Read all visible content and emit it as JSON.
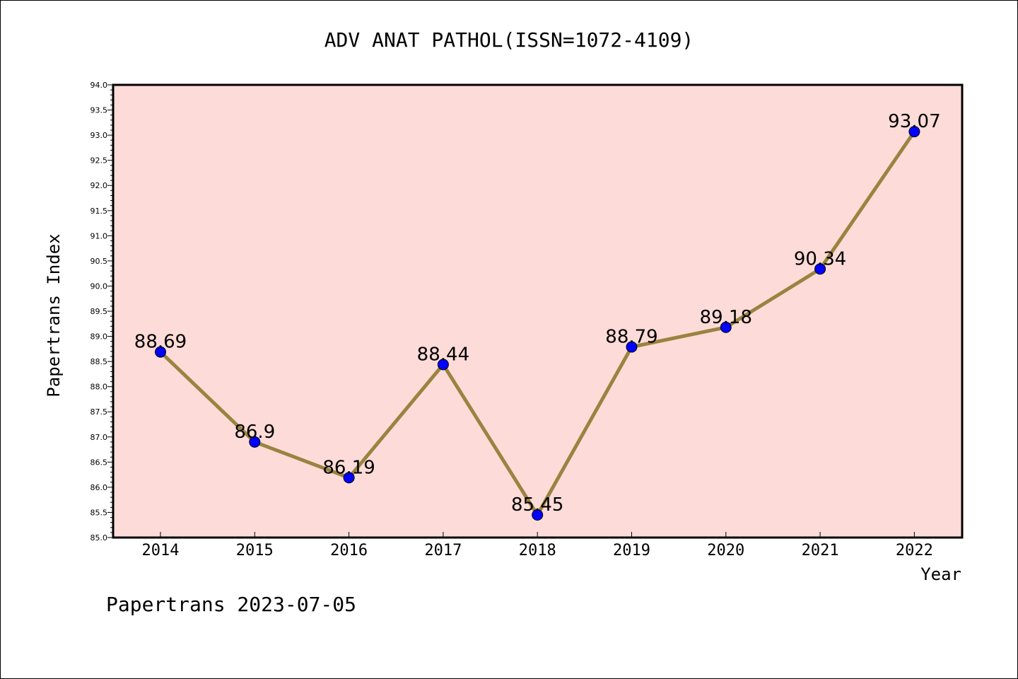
{
  "chart_data": {
    "type": "line",
    "title": "ADV ANAT PATHOL(ISSN=1072-4109)",
    "xlabel": "Year",
    "ylabel": "Papertrans Index",
    "categories": [
      "2014",
      "2015",
      "2016",
      "2017",
      "2018",
      "2019",
      "2020",
      "2021",
      "2022"
    ],
    "series": [
      {
        "values": [
          88.69,
          86.9,
          86.19,
          88.44,
          85.45,
          88.79,
          89.18,
          90.34,
          93.07
        ]
      }
    ],
    "data_labels": [
      "88.69",
      "86.9",
      "86.19",
      "88.44",
      "85.45",
      "88.79",
      "89.18",
      "90.34",
      "93.07"
    ],
    "ylim": [
      85.0,
      94.0
    ],
    "yticks": [
      "85.0",
      "85.5",
      "86.0",
      "86.5",
      "87.0",
      "87.5",
      "88.0",
      "88.5",
      "89.0",
      "89.5",
      "90.0",
      "90.5",
      "91.0",
      "91.5",
      "92.0",
      "92.5",
      "93.0",
      "93.5",
      "94.0"
    ],
    "grid": false,
    "colors": {
      "plot_background": "#fddbd8",
      "line": "#9a8340",
      "marker": "#0000ff"
    }
  },
  "footer": "Papertrans 2023-07-05"
}
